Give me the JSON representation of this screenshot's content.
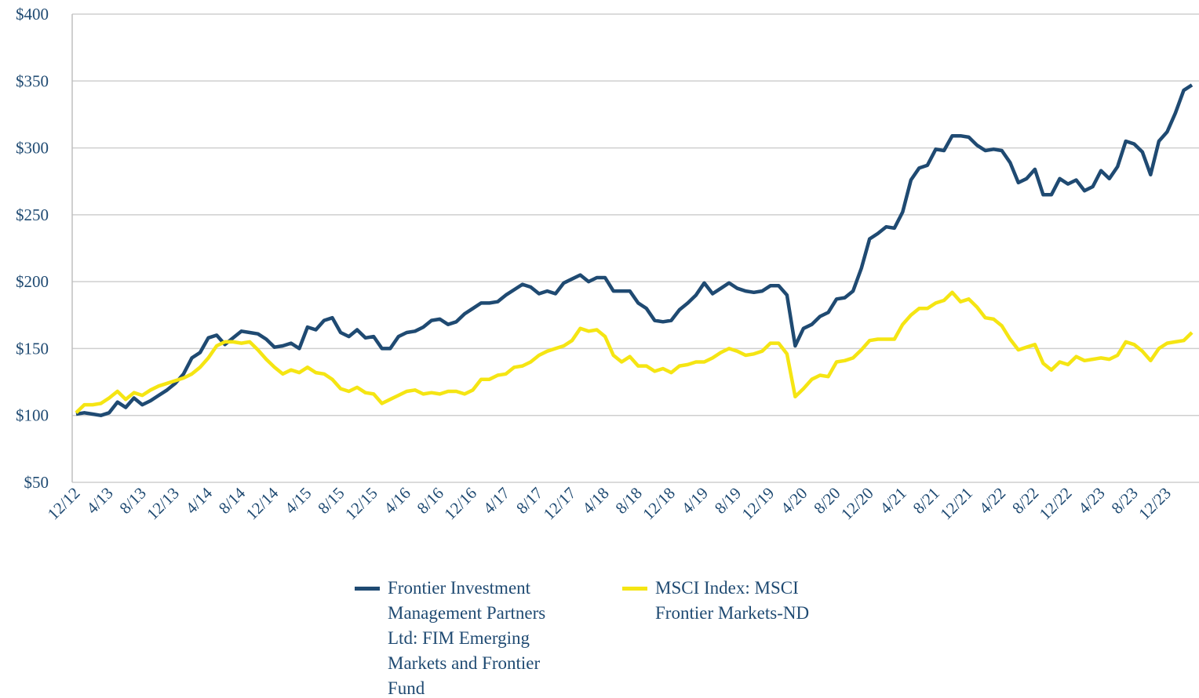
{
  "chart_data": {
    "type": "line",
    "categories": [
      "12/12",
      null,
      null,
      null,
      "4/13",
      null,
      null,
      null,
      "8/13",
      null,
      null,
      null,
      "12/13",
      null,
      null,
      null,
      "4/14",
      null,
      null,
      null,
      "8/14",
      null,
      null,
      null,
      "12/14",
      null,
      null,
      null,
      "4/15",
      null,
      null,
      null,
      "8/15",
      null,
      null,
      null,
      "12/15",
      null,
      null,
      null,
      "4/16",
      null,
      null,
      null,
      "8/16",
      null,
      null,
      null,
      "12/16",
      null,
      null,
      null,
      "4/17",
      null,
      null,
      null,
      "8/17",
      null,
      null,
      null,
      "12/17",
      null,
      null,
      null,
      "4/18",
      null,
      null,
      null,
      "8/18",
      null,
      null,
      null,
      "12/18",
      null,
      null,
      null,
      "4/19",
      null,
      null,
      null,
      "8/19",
      null,
      null,
      null,
      "12/19",
      null,
      null,
      null,
      "4/20",
      null,
      null,
      null,
      "8/20",
      null,
      null,
      null,
      "12/20",
      null,
      null,
      null,
      "4/21",
      null,
      null,
      null,
      "8/21",
      null,
      null,
      null,
      "12/21",
      null,
      null,
      null,
      "4/22",
      null,
      null,
      null,
      "8/22",
      null,
      null,
      null,
      "12/22",
      null,
      null,
      null,
      "4/23",
      null,
      null,
      null,
      "8/23",
      null,
      null,
      null,
      "12/23",
      null,
      null,
      null
    ],
    "series": [
      {
        "name": "Frontier Investment Management Partners Ltd: FIM Emerging Markets and Frontier Fund",
        "color": "#1f4a72",
        "values": [
          101,
          102,
          101,
          100,
          102,
          110,
          106,
          113,
          108,
          111,
          115,
          119,
          124,
          131,
          143,
          147,
          158,
          160,
          153,
          158,
          163,
          162,
          161,
          157,
          151,
          152,
          154,
          150,
          166,
          164,
          171,
          173,
          162,
          159,
          164,
          158,
          159,
          150,
          150,
          159,
          162,
          163,
          166,
          171,
          172,
          168,
          170,
          176,
          180,
          184,
          184,
          185,
          190,
          194,
          198,
          196,
          191,
          193,
          191,
          199,
          202,
          205,
          200,
          203,
          203,
          193,
          193,
          193,
          184,
          180,
          171,
          170,
          171,
          179,
          184,
          190,
          199,
          191,
          195,
          199,
          195,
          193,
          192,
          193,
          197,
          197,
          190,
          152,
          165,
          168,
          174,
          177,
          187,
          188,
          193,
          210,
          232,
          236,
          241,
          240,
          252,
          276,
          285,
          287,
          299,
          298,
          309,
          309,
          308,
          302,
          298,
          299,
          298,
          289,
          274,
          277,
          284,
          265,
          265,
          277,
          273,
          276,
          268,
          271,
          283,
          277,
          286,
          305,
          303,
          297,
          280,
          305,
          312,
          326,
          343,
          347
        ]
      },
      {
        "name": "MSCI Index: MSCI Frontier Markets-ND",
        "color": "#f5e513",
        "values": [
          102,
          108,
          108,
          109,
          113,
          118,
          112,
          117,
          115,
          119,
          122,
          124,
          126,
          128,
          131,
          136,
          143,
          152,
          155,
          155,
          154,
          155,
          149,
          142,
          136,
          131,
          134,
          132,
          136,
          132,
          131,
          127,
          120,
          118,
          121,
          117,
          116,
          109,
          112,
          115,
          118,
          119,
          116,
          117,
          116,
          118,
          118,
          116,
          119,
          127,
          127,
          130,
          131,
          136,
          137,
          140,
          145,
          148,
          150,
          152,
          156,
          165,
          163,
          164,
          159,
          145,
          140,
          144,
          137,
          137,
          133,
          135,
          132,
          137,
          138,
          140,
          140,
          143,
          147,
          150,
          148,
          145,
          146,
          148,
          154,
          154,
          146,
          114,
          120,
          127,
          130,
          129,
          140,
          141,
          143,
          149,
          156,
          157,
          157,
          157,
          168,
          175,
          180,
          180,
          184,
          186,
          192,
          185,
          187,
          181,
          173,
          172,
          167,
          157,
          149,
          151,
          153,
          139,
          134,
          140,
          138,
          144,
          141,
          142,
          143,
          142,
          145,
          155,
          153,
          148,
          141,
          150,
          154,
          155,
          156,
          162
        ]
      }
    ],
    "ylim": [
      50,
      400
    ],
    "yticks": [
      {
        "value": 50,
        "label": "$50"
      },
      {
        "value": 100,
        "label": "$100"
      },
      {
        "value": 150,
        "label": "$150"
      },
      {
        "value": 200,
        "label": "$200"
      },
      {
        "value": 250,
        "label": "$250"
      },
      {
        "value": 300,
        "label": "$300"
      },
      {
        "value": 350,
        "label": "$350"
      },
      {
        "value": 400,
        "label": "$400"
      }
    ],
    "grid": true
  }
}
